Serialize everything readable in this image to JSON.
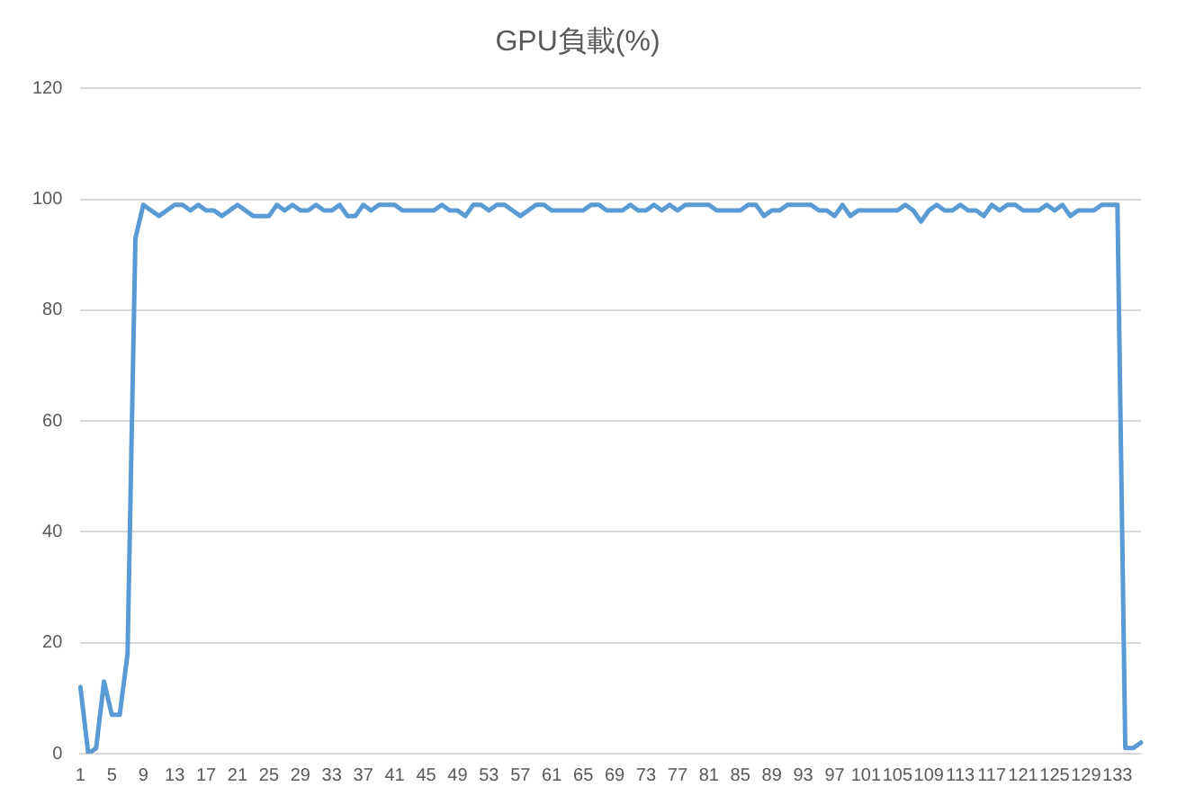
{
  "chart_data": {
    "type": "line",
    "title": "GPU負載(%)",
    "categories": [
      "1",
      null,
      null,
      null,
      "5",
      null,
      null,
      null,
      "9",
      null,
      null,
      null,
      "13",
      null,
      null,
      null,
      "17",
      null,
      null,
      null,
      "21",
      null,
      null,
      null,
      "25",
      null,
      null,
      null,
      "29",
      null,
      null,
      null,
      "33",
      null,
      null,
      null,
      "37",
      null,
      null,
      null,
      "41",
      null,
      null,
      null,
      "45",
      null,
      null,
      null,
      "49",
      null,
      null,
      null,
      "53",
      null,
      null,
      null,
      "57",
      null,
      null,
      null,
      "61",
      null,
      null,
      null,
      "65",
      null,
      null,
      null,
      "69",
      null,
      null,
      null,
      "73",
      null,
      null,
      null,
      "77",
      null,
      null,
      null,
      "81",
      null,
      null,
      null,
      "85",
      null,
      null,
      null,
      "89",
      null,
      null,
      null,
      "93",
      null,
      null,
      null,
      "97",
      null,
      null,
      null,
      "101",
      null,
      null,
      null,
      "105",
      null,
      null,
      null,
      "109",
      null,
      null,
      null,
      "113",
      null,
      null,
      null,
      "117",
      null,
      null,
      null,
      "121",
      null,
      null,
      null,
      "125",
      null,
      null,
      null,
      "129",
      null,
      null,
      null,
      "133",
      null,
      null,
      null
    ],
    "series": [
      {
        "color": "#5b9bd5",
        "values": [
          12,
          0,
          1,
          13,
          7,
          7,
          18,
          93,
          99,
          98,
          97,
          98,
          99,
          99,
          98,
          99,
          98,
          98,
          97,
          98,
          99,
          98,
          97,
          97,
          97,
          99,
          98,
          99,
          98,
          98,
          99,
          98,
          98,
          99,
          97,
          97,
          99,
          98,
          99,
          99,
          99,
          98,
          98,
          98,
          98,
          98,
          99,
          98,
          98,
          97,
          99,
          99,
          98,
          99,
          99,
          98,
          97,
          98,
          99,
          99,
          98,
          98,
          98,
          98,
          98,
          99,
          99,
          98,
          98,
          98,
          99,
          98,
          98,
          99,
          98,
          99,
          98,
          99,
          99,
          99,
          99,
          98,
          98,
          98,
          98,
          99,
          99,
          97,
          98,
          98,
          99,
          99,
          99,
          99,
          98,
          98,
          97,
          99,
          97,
          98,
          98,
          98,
          98,
          98,
          98,
          99,
          98,
          96,
          98,
          99,
          98,
          98,
          99,
          98,
          98,
          97,
          99,
          98,
          99,
          99,
          98,
          98,
          98,
          99,
          98,
          99,
          97,
          98,
          98,
          98,
          99,
          99,
          99,
          1,
          1,
          2
        ]
      }
    ],
    "ylim": [
      0,
      120
    ],
    "yticks": [
      0,
      20,
      40,
      60,
      80,
      100,
      120
    ],
    "grid": "y",
    "legend": false,
    "marker": "none",
    "line_style": "solid"
  }
}
